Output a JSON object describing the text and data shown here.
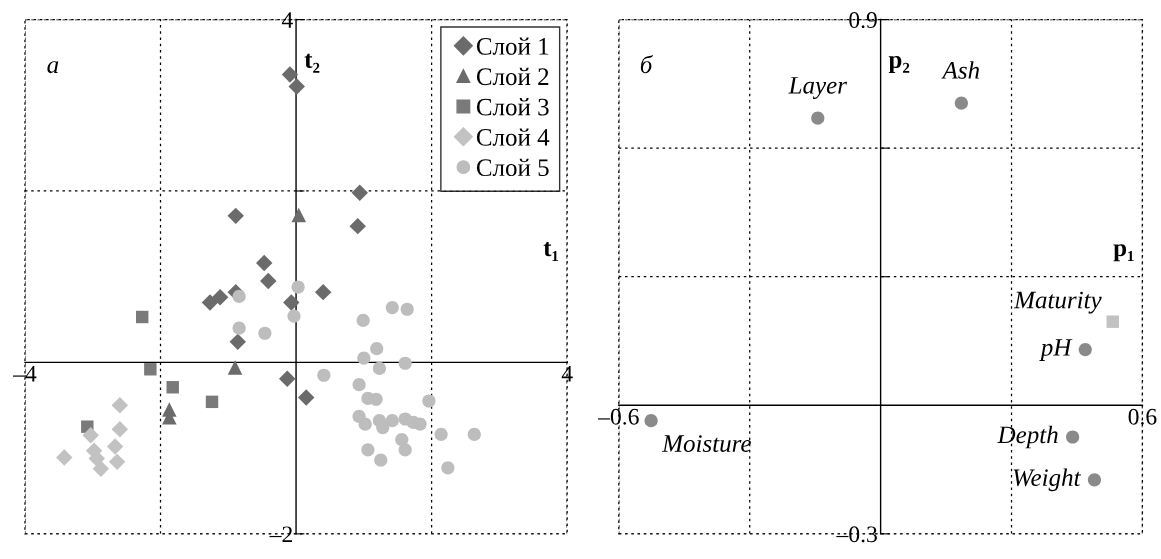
{
  "chart_data": [
    {
      "type": "scatter",
      "xlabel": "t₁",
      "ylabel": "t₂",
      "annotations": [
        "а"
      ],
      "xlim": [
        -4,
        4
      ],
      "ylim": [
        -2,
        4
      ],
      "xticks": [
        {
          "value": -4,
          "label": "–4"
        },
        {
          "value": -2,
          "label": null
        },
        {
          "value": 2,
          "label": null
        },
        4
      ],
      "yticks": [
        {
          "value": -2,
          "label": "–2"
        },
        {
          "value": 2,
          "label": null
        },
        4
      ],
      "grid": true,
      "legend": "top right",
      "series": [
        {
          "name": "Слой 1",
          "color": "#6b6b6b",
          "marker": "diamond",
          "x": [
            -0.09,
            0.01,
            0.94,
            0.91,
            -0.89,
            -0.47,
            -0.41,
            -1.27,
            -1.12,
            -0.89,
            0.4,
            -0.07,
            -0.86,
            -0.13,
            0.15
          ],
          "values": [
            3.36,
            3.22,
            1.98,
            1.59,
            1.71,
            1.16,
            0.95,
            0.7,
            0.76,
            0.82,
            0.82,
            0.7,
            0.24,
            -0.19,
            -0.41
          ]
        },
        {
          "name": "Слой 2",
          "color": "#6b6b6b",
          "marker": "triangle",
          "x": [
            0.04,
            -0.9,
            -1.87,
            -1.87
          ],
          "values": [
            1.72,
            -0.06,
            -0.55,
            -0.64
          ]
        },
        {
          "name": "Слой 3",
          "color": "#7a7a7a",
          "marker": "square",
          "x": [
            -2.27,
            -2.15,
            -1.82,
            -1.24,
            -3.08
          ],
          "values": [
            0.53,
            -0.08,
            -0.29,
            -0.46,
            -0.75
          ]
        },
        {
          "name": "Слой 4",
          "color": "#c2c2c2",
          "marker": "diamond",
          "x": [
            -2.6,
            -2.6,
            -3.03,
            -2.67,
            -3.42,
            -2.98,
            -2.94,
            -2.88,
            -2.64
          ],
          "values": [
            -0.5,
            -0.78,
            -0.85,
            -0.98,
            -1.11,
            -1.03,
            -1.12,
            -1.24,
            -1.16
          ]
        },
        {
          "name": "Слой 5",
          "color": "#bdbdbd",
          "marker": "circle",
          "x": [
            -0.84,
            0.03,
            -0.03,
            -0.84,
            -0.46,
            0.41,
            0.99,
            1.42,
            1.64,
            1.19,
            1.0,
            1.23,
            1.61,
            0.93,
            1.06,
            1.18,
            1.96,
            0.93,
            1.02,
            1.23,
            1.42,
            1.61,
            1.83,
            2.14,
            2.63,
            1.56,
            1.61,
            1.06,
            1.25,
            2.24,
            1.28,
            1.73
          ],
          "values": [
            0.77,
            0.88,
            0.54,
            0.4,
            0.34,
            -0.15,
            0.49,
            0.64,
            0.62,
            0.16,
            0.05,
            -0.07,
            -0.01,
            -0.26,
            -0.42,
            -0.43,
            -0.45,
            -0.63,
            -0.72,
            -0.68,
            -0.68,
            -0.66,
            -0.72,
            -0.84,
            -0.84,
            -0.9,
            -1.02,
            -1.02,
            -1.14,
            -1.23,
            -0.76,
            -0.7
          ]
        }
      ]
    },
    {
      "type": "scatter",
      "xlabel": "p₁",
      "ylabel": "p₂",
      "xlim": [
        -0.6,
        0.6
      ],
      "ylim": [
        -0.3,
        0.9
      ],
      "xticks": [
        {
          "value": -0.6,
          "label": "–0.6"
        },
        {
          "value": -0.3,
          "label": null
        },
        {
          "value": 0.3,
          "label": null
        },
        0.6
      ],
      "yticks": [
        {
          "value": -0.3,
          "label": "–0.3"
        },
        {
          "value": 0.3,
          "label": null
        },
        {
          "value": 0.6,
          "label": null
        },
        0.9
      ],
      "grid": true,
      "annotations": [
        "б",
        {
          "text": "Layer",
          "x": -0.144,
          "y": 0.67
        },
        {
          "text": "Ash",
          "x": 0.185,
          "y": 0.705
        },
        {
          "text": "Maturity",
          "x": 0.532,
          "y": 0.195
        },
        {
          "text": "pH",
          "x": 0.469,
          "y": 0.13
        },
        {
          "text": "Moisture",
          "x": -0.526,
          "y": -0.036
        },
        {
          "text": "Depth",
          "x": 0.44,
          "y": -0.074
        },
        {
          "text": "Weight",
          "x": 0.49,
          "y": -0.174
        }
      ],
      "series": [
        {
          "color": "#8a8a8a",
          "marker": "circle",
          "x": [
            -0.144,
            0.185,
            0.469,
            -0.526,
            0.44,
            0.49
          ],
          "values": [
            0.67,
            0.705,
            0.13,
            -0.036,
            -0.074,
            -0.174
          ]
        },
        {
          "color": "#c2c2c2",
          "marker": "square",
          "x": [
            0.532
          ],
          "values": [
            0.195
          ]
        }
      ]
    }
  ]
}
